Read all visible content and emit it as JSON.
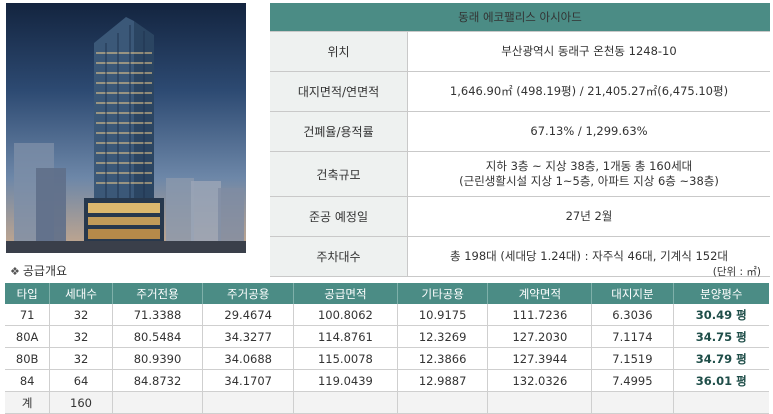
{
  "project": {
    "title": "동래 에코팰리스 아시아드"
  },
  "specs": [
    {
      "label": "위치",
      "lines": [
        "부산광역시 동래구 온천동 1248-10"
      ]
    },
    {
      "label": "대지면적/연면적",
      "lines": [
        "1,646.90㎡ (498.19평) / 21,405.27㎡(6,475.10평)"
      ]
    },
    {
      "label": "건폐율/용적률",
      "lines": [
        "67.13% / 1,299.63%"
      ]
    },
    {
      "label": "건축규모",
      "lines": [
        "지하 3층 ~ 지상 38층, 1개동 총 160세대",
        "(근린생활시설 지상 1~5층, 아파트 지상 6층 ~38층)"
      ]
    },
    {
      "label": "준공 예정일",
      "lines": [
        "27년 2월"
      ]
    },
    {
      "label": "주차대수",
      "lines": [
        "총 198대 (세대당 1.24대) : 자주식 46대, 기계식 152대"
      ]
    }
  ],
  "supply": {
    "section_title": "공급개요",
    "unit_note": "(단위 : ㎡)",
    "headers": [
      "타입",
      "세대수",
      "주거전용",
      "주거공용",
      "공급면적",
      "기타공용",
      "계약면적",
      "대지지분",
      "분양평수"
    ],
    "rows": [
      [
        "71",
        "32",
        "71.3388",
        "29.4674",
        "100.8062",
        "10.9175",
        "111.7236",
        "6.3036",
        "30.49 평"
      ],
      [
        "80A",
        "32",
        "80.5484",
        "34.3277",
        "114.8761",
        "12.3269",
        "127.2030",
        "7.1174",
        "34.75 평"
      ],
      [
        "80B",
        "32",
        "80.9390",
        "34.0688",
        "115.0078",
        "12.3866",
        "127.3944",
        "7.1519",
        "34.79 평"
      ],
      [
        "84",
        "64",
        "84.8732",
        "34.1707",
        "119.0439",
        "12.9887",
        "132.0326",
        "7.4995",
        "36.01 평"
      ]
    ],
    "total": [
      "계",
      "160",
      "",
      "",
      "",
      "",
      "",
      "",
      ""
    ]
  },
  "colors": {
    "header_teal": "#4b8c85",
    "label_bg": "#eef1f0"
  }
}
